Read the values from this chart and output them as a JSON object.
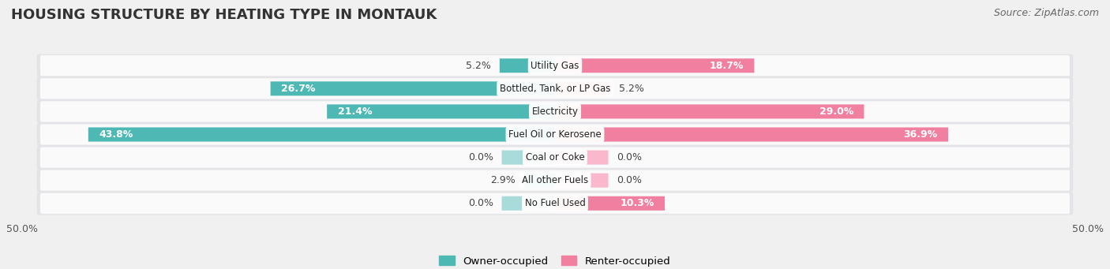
{
  "title": "Housing Structure by Heating Type in Montauk",
  "source": "Source: ZipAtlas.com",
  "categories": [
    "Utility Gas",
    "Bottled, Tank, or LP Gas",
    "Electricity",
    "Fuel Oil or Kerosene",
    "Coal or Coke",
    "All other Fuels",
    "No Fuel Used"
  ],
  "owner_values": [
    5.2,
    26.7,
    21.4,
    43.8,
    0.0,
    2.9,
    0.0
  ],
  "renter_values": [
    18.7,
    5.2,
    29.0,
    36.9,
    0.0,
    0.0,
    10.3
  ],
  "owner_color": "#4db8b4",
  "renter_color": "#f07fa0",
  "owner_color_light": "#a8dbd9",
  "renter_color_light": "#f9b8cb",
  "owner_label": "Owner-occupied",
  "renter_label": "Renter-occupied",
  "axis_max": 50.0,
  "background_color": "#f0f0f0",
  "row_bg_color": "#e8e8eb",
  "title_fontsize": 13,
  "source_fontsize": 9,
  "label_fontsize": 9,
  "cat_fontsize": 8.5,
  "bar_height": 0.62,
  "zero_stub": 5.0,
  "inner_threshold": 10.0
}
